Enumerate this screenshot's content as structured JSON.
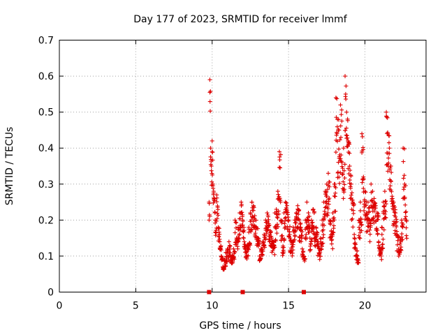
{
  "chart_data": {
    "type": "scatter",
    "title": "Day 177 of 2023, SRMTID for receiver lmmf",
    "xlabel": "GPS time / hours",
    "ylabel": "SRMTID / TECUs",
    "xlim": [
      0,
      24
    ],
    "ylim": [
      0,
      0.7
    ],
    "xticks": [
      "0",
      "5",
      "10",
      "15",
      "20"
    ],
    "yticks": [
      "0",
      "0.1",
      "0.2",
      "0.3",
      "0.4",
      "0.5",
      "0.6",
      "0.7"
    ],
    "grid": true,
    "colors": {
      "series": "#dd0000"
    },
    "series": [
      {
        "name": "SRMTID",
        "marker": "plus",
        "x": [
          9.8,
          9.85,
          9.9,
          9.95,
          10.0,
          10.05,
          10.1,
          10.15,
          10.2,
          10.3,
          10.4,
          10.5,
          10.6,
          10.7,
          10.8,
          10.9,
          11.0,
          11.1,
          11.2,
          11.3,
          11.4,
          11.5,
          11.6,
          11.7,
          11.8,
          11.9,
          12.0,
          12.1,
          12.2,
          12.3,
          12.4,
          12.5,
          12.6,
          12.7,
          12.8,
          12.9,
          13.0,
          13.1,
          13.2,
          13.3,
          13.4,
          13.5,
          13.6,
          13.7,
          13.8,
          13.9,
          14.0,
          14.1,
          14.2,
          14.3,
          14.4,
          14.5,
          14.6,
          14.7,
          14.8,
          14.9,
          15.0,
          15.1,
          15.2,
          15.3,
          15.4,
          15.5,
          15.6,
          15.7,
          15.8,
          15.9,
          16.0,
          16.1,
          16.2,
          16.3,
          16.4,
          16.5,
          16.6,
          16.7,
          16.8,
          16.9,
          17.0,
          17.1,
          17.2,
          17.3,
          17.4,
          17.5,
          17.6,
          17.7,
          17.8,
          17.9,
          18.0,
          18.1,
          18.2,
          18.3,
          18.4,
          18.5,
          18.6,
          18.7,
          18.8,
          18.9,
          19.0,
          19.1,
          19.2,
          19.3,
          19.4,
          19.5,
          19.6,
          19.7,
          19.8,
          19.9,
          20.0,
          20.1,
          20.2,
          20.3,
          20.4,
          20.5,
          20.6,
          20.7,
          20.8,
          20.9,
          21.0,
          21.1,
          21.2,
          21.3,
          21.4,
          21.5,
          21.6,
          21.7,
          21.8,
          21.9,
          22.0,
          22.1,
          22.2,
          22.3,
          22.4,
          22.5,
          22.6,
          22.7
        ],
        "y": [
          0.25,
          0.59,
          0.4,
          0.35,
          0.42,
          0.3,
          0.28,
          0.26,
          0.2,
          0.27,
          0.18,
          0.14,
          0.1,
          0.07,
          0.09,
          0.11,
          0.12,
          0.14,
          0.1,
          0.1,
          0.12,
          0.2,
          0.15,
          0.18,
          0.22,
          0.25,
          0.2,
          0.14,
          0.12,
          0.13,
          0.18,
          0.22,
          0.25,
          0.24,
          0.2,
          0.18,
          0.15,
          0.1,
          0.12,
          0.14,
          0.16,
          0.2,
          0.22,
          0.19,
          0.17,
          0.15,
          0.14,
          0.22,
          0.23,
          0.28,
          0.39,
          0.2,
          0.15,
          0.22,
          0.25,
          0.24,
          0.2,
          0.15,
          0.14,
          0.18,
          0.2,
          0.22,
          0.24,
          0.2,
          0.18,
          0.12,
          0.1,
          0.2,
          0.25,
          0.22,
          0.15,
          0.2,
          0.23,
          0.16,
          0.18,
          0.14,
          0.12,
          0.15,
          0.2,
          0.25,
          0.28,
          0.3,
          0.33,
          0.2,
          0.17,
          0.22,
          0.3,
          0.54,
          0.48,
          0.45,
          0.52,
          0.36,
          0.4,
          0.6,
          0.5,
          0.42,
          0.35,
          0.3,
          0.25,
          0.16,
          0.12,
          0.1,
          0.2,
          0.25,
          0.44,
          0.32,
          0.28,
          0.22,
          0.25,
          0.2,
          0.3,
          0.28,
          0.26,
          0.24,
          0.22,
          0.14,
          0.12,
          0.18,
          0.25,
          0.28,
          0.5,
          0.44,
          0.4,
          0.35,
          0.26,
          0.24,
          0.22,
          0.16,
          0.12,
          0.15,
          0.2,
          0.4,
          0.3,
          0.2
        ],
        "ymin": [
          0.2,
          0.46,
          0.3,
          0.28,
          0.32,
          0.24,
          0.22,
          0.2,
          0.15,
          0.2,
          0.14,
          0.11,
          0.08,
          0.06,
          0.07,
          0.08,
          0.09,
          0.1,
          0.08,
          0.08,
          0.09,
          0.13,
          0.11,
          0.13,
          0.16,
          0.17,
          0.14,
          0.11,
          0.09,
          0.1,
          0.13,
          0.16,
          0.18,
          0.17,
          0.15,
          0.13,
          0.11,
          0.08,
          0.09,
          0.1,
          0.12,
          0.15,
          0.16,
          0.14,
          0.12,
          0.11,
          0.1,
          0.12,
          0.16,
          0.17,
          0.23,
          0.14,
          0.1,
          0.14,
          0.18,
          0.17,
          0.15,
          0.11,
          0.1,
          0.13,
          0.14,
          0.16,
          0.17,
          0.14,
          0.13,
          0.09,
          0.08,
          0.14,
          0.17,
          0.16,
          0.11,
          0.14,
          0.16,
          0.12,
          0.13,
          0.1,
          0.09,
          0.11,
          0.13,
          0.18,
          0.2,
          0.21,
          0.23,
          0.15,
          0.12,
          0.16,
          0.21,
          0.36,
          0.3,
          0.3,
          0.36,
          0.26,
          0.27,
          0.4,
          0.34,
          0.3,
          0.24,
          0.2,
          0.18,
          0.12,
          0.09,
          0.08,
          0.14,
          0.17,
          0.3,
          0.22,
          0.2,
          0.16,
          0.17,
          0.14,
          0.2,
          0.19,
          0.18,
          0.17,
          0.16,
          0.1,
          0.09,
          0.12,
          0.17,
          0.2,
          0.35,
          0.3,
          0.28,
          0.24,
          0.18,
          0.16,
          0.15,
          0.11,
          0.09,
          0.11,
          0.14,
          0.26,
          0.2,
          0.14
        ]
      }
    ],
    "data_gaps": [
      9.8,
      12.0,
      16.0
    ]
  }
}
